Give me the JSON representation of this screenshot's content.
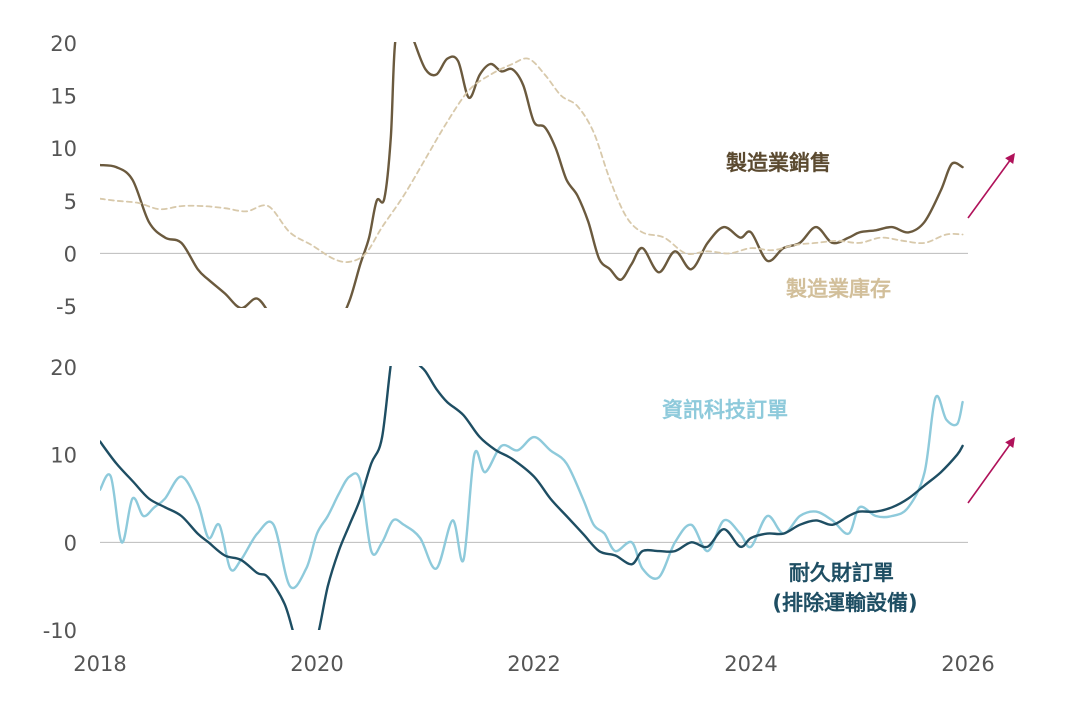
{
  "chart_data": [
    {
      "type": "line",
      "x_range": [
        2018,
        2026
      ],
      "ylim": [
        -5,
        20
      ],
      "y_ticks": [
        "20",
        "15",
        "10",
        "5",
        "0",
        "-5"
      ],
      "y_tick_values": [
        20,
        15,
        10,
        5,
        0,
        -5
      ],
      "baseline": 0,
      "grid": false,
      "trend_arrow": true,
      "series": [
        {
          "name": "製造業銷售",
          "color": "#6b5a3e",
          "style": "solid",
          "x": [
            2018.0,
            2018.15,
            2018.3,
            2018.45,
            2018.6,
            2018.75,
            2018.9,
            2019.0,
            2019.15,
            2019.3,
            2019.45,
            2019.6,
            2019.75,
            2019.9,
            2020.0,
            2020.1,
            2020.2,
            2020.3,
            2020.4,
            2020.48,
            2020.55,
            2020.62,
            2020.68,
            2020.72,
            2020.8,
            2020.9,
            2021.0,
            2021.1,
            2021.2,
            2021.3,
            2021.4,
            2021.5,
            2021.6,
            2021.7,
            2021.8,
            2021.9,
            2022.0,
            2022.1,
            2022.2,
            2022.3,
            2022.4,
            2022.5,
            2022.6,
            2022.7,
            2022.8,
            2022.9,
            2023.0,
            2023.15,
            2023.3,
            2023.45,
            2023.6,
            2023.75,
            2023.9,
            2024.0,
            2024.15,
            2024.3,
            2024.45,
            2024.6,
            2024.75,
            2024.9,
            2025.0,
            2025.15,
            2025.3,
            2025.45,
            2025.6,
            2025.75,
            2025.85,
            2025.95
          ],
          "values": [
            8.4,
            8.2,
            7.0,
            3.0,
            1.5,
            1.0,
            -1.5,
            -2.5,
            -3.8,
            -5.2,
            -4.3,
            -6.2,
            -6.8,
            -6.8,
            -6.8,
            -6.8,
            -6.5,
            -4.5,
            -1.0,
            1.5,
            5.0,
            5.2,
            11.0,
            20.0,
            23.0,
            20.0,
            17.5,
            17.0,
            18.5,
            18.3,
            14.8,
            17.0,
            18.0,
            17.3,
            17.5,
            16.0,
            12.5,
            12.0,
            10.0,
            7.0,
            5.5,
            3.0,
            -0.5,
            -1.5,
            -2.5,
            -1.0,
            0.5,
            -1.8,
            0.2,
            -1.5,
            1.0,
            2.5,
            1.5,
            2.0,
            -0.7,
            0.5,
            1.0,
            2.5,
            1.0,
            1.5,
            2.0,
            2.2,
            2.5,
            2.0,
            3.0,
            6.0,
            8.5,
            8.2
          ]
        },
        {
          "name": "製造業庫存",
          "color": "#d8c9ab",
          "style": "dashed",
          "x": [
            2018.0,
            2018.15,
            2018.35,
            2018.55,
            2018.75,
            2018.95,
            2019.15,
            2019.35,
            2019.55,
            2019.75,
            2019.95,
            2020.15,
            2020.3,
            2020.45,
            2020.6,
            2020.8,
            2021.0,
            2021.2,
            2021.4,
            2021.6,
            2021.8,
            2021.95,
            2022.1,
            2022.25,
            2022.4,
            2022.55,
            2022.7,
            2022.85,
            2023.0,
            2023.2,
            2023.4,
            2023.6,
            2023.8,
            2024.0,
            2024.2,
            2024.4,
            2024.6,
            2024.8,
            2025.0,
            2025.2,
            2025.4,
            2025.6,
            2025.8,
            2025.95
          ],
          "values": [
            5.2,
            5.0,
            4.8,
            4.2,
            4.5,
            4.5,
            4.3,
            4.0,
            4.5,
            2.0,
            0.8,
            -0.5,
            -0.8,
            0.0,
            2.5,
            5.5,
            9.0,
            12.5,
            15.5,
            17.0,
            18.0,
            18.5,
            17.0,
            15.0,
            14.0,
            11.5,
            7.0,
            3.5,
            2.0,
            1.5,
            0.0,
            0.2,
            0.0,
            0.5,
            0.3,
            0.8,
            1.0,
            1.2,
            1.0,
            1.5,
            1.2,
            1.0,
            1.8,
            1.8
          ]
        }
      ]
    },
    {
      "type": "line",
      "x_range": [
        2018,
        2026
      ],
      "ylim": [
        -10,
        20
      ],
      "y_ticks": [
        "20",
        "10",
        "0",
        "-10"
      ],
      "y_tick_values": [
        20,
        10,
        0,
        -10
      ],
      "baseline": 0,
      "grid": false,
      "trend_arrow": true,
      "x_ticks": [
        "2018",
        "2020",
        "2022",
        "2024",
        "2026"
      ],
      "x_tick_values": [
        2018,
        2020,
        2022,
        2024,
        2026
      ],
      "series": [
        {
          "name": "資訊科技訂單",
          "color": "#8ecadb",
          "style": "solid",
          "x": [
            2018.0,
            2018.1,
            2018.2,
            2018.3,
            2018.4,
            2018.5,
            2018.6,
            2018.75,
            2018.9,
            2019.0,
            2019.1,
            2019.2,
            2019.3,
            2019.45,
            2019.6,
            2019.75,
            2019.9,
            2020.0,
            2020.1,
            2020.2,
            2020.3,
            2020.4,
            2020.5,
            2020.6,
            2020.7,
            2020.8,
            2020.95,
            2021.1,
            2021.25,
            2021.35,
            2021.45,
            2021.55,
            2021.7,
            2021.85,
            2022.0,
            2022.15,
            2022.3,
            2022.45,
            2022.55,
            2022.65,
            2022.75,
            2022.9,
            2023.0,
            2023.15,
            2023.3,
            2023.45,
            2023.6,
            2023.75,
            2023.9,
            2024.0,
            2024.15,
            2024.3,
            2024.45,
            2024.6,
            2024.75,
            2024.9,
            2025.0,
            2025.15,
            2025.3,
            2025.45,
            2025.6,
            2025.7,
            2025.8,
            2025.9,
            2025.95
          ],
          "values": [
            6.0,
            7.5,
            0.0,
            5.0,
            3.0,
            4.0,
            5.0,
            7.5,
            4.5,
            0.5,
            2.0,
            -3.0,
            -2.0,
            1.0,
            2.0,
            -5.0,
            -3.0,
            1.0,
            3.0,
            5.5,
            7.5,
            7.0,
            -1.0,
            0.0,
            2.5,
            2.0,
            0.5,
            -3.0,
            2.5,
            -2.0,
            10.0,
            8.0,
            11.0,
            10.5,
            12.0,
            10.5,
            9.0,
            5.0,
            2.0,
            1.0,
            -1.0,
            0.0,
            -3.0,
            -4.0,
            0.0,
            2.0,
            -1.0,
            2.5,
            1.0,
            -0.5,
            3.0,
            1.0,
            3.0,
            3.5,
            2.5,
            1.0,
            4.0,
            3.0,
            3.0,
            4.0,
            8.0,
            16.5,
            14.0,
            13.5,
            16.0
          ]
        },
        {
          "name": "耐久財訂單 (排除運輸設備)",
          "color": "#1e4e63",
          "style": "solid",
          "x": [
            2018.0,
            2018.15,
            2018.3,
            2018.45,
            2018.6,
            2018.75,
            2018.9,
            2019.0,
            2019.15,
            2019.3,
            2019.45,
            2019.55,
            2019.7,
            2019.8,
            2019.9,
            2020.0,
            2020.1,
            2020.2,
            2020.3,
            2020.4,
            2020.5,
            2020.6,
            2020.7,
            2020.8,
            2020.9,
            2021.0,
            2021.1,
            2021.2,
            2021.35,
            2021.5,
            2021.65,
            2021.8,
            2022.0,
            2022.15,
            2022.3,
            2022.45,
            2022.6,
            2022.75,
            2022.9,
            2023.0,
            2023.15,
            2023.3,
            2023.45,
            2023.6,
            2023.75,
            2023.9,
            2024.0,
            2024.15,
            2024.3,
            2024.45,
            2024.6,
            2024.75,
            2024.9,
            2025.0,
            2025.15,
            2025.3,
            2025.45,
            2025.6,
            2025.75,
            2025.9,
            2025.95
          ],
          "values": [
            11.5,
            9.0,
            7.0,
            5.0,
            4.0,
            3.0,
            1.0,
            0.0,
            -1.5,
            -2.0,
            -3.5,
            -4.0,
            -7.0,
            -11.0,
            -14.0,
            -11.0,
            -5.0,
            -1.0,
            2.0,
            5.0,
            9.0,
            12.0,
            22.0,
            25.0,
            21.0,
            19.5,
            17.5,
            16.0,
            14.5,
            12.0,
            10.5,
            9.5,
            7.5,
            5.0,
            3.0,
            1.0,
            -1.0,
            -1.5,
            -2.5,
            -1.0,
            -1.0,
            -1.0,
            0.0,
            -0.5,
            1.5,
            -0.5,
            0.5,
            1.0,
            1.0,
            2.0,
            2.5,
            2.0,
            3.0,
            3.5,
            3.5,
            4.0,
            5.0,
            6.5,
            8.0,
            10.0,
            11.0
          ]
        }
      ]
    }
  ]
}
